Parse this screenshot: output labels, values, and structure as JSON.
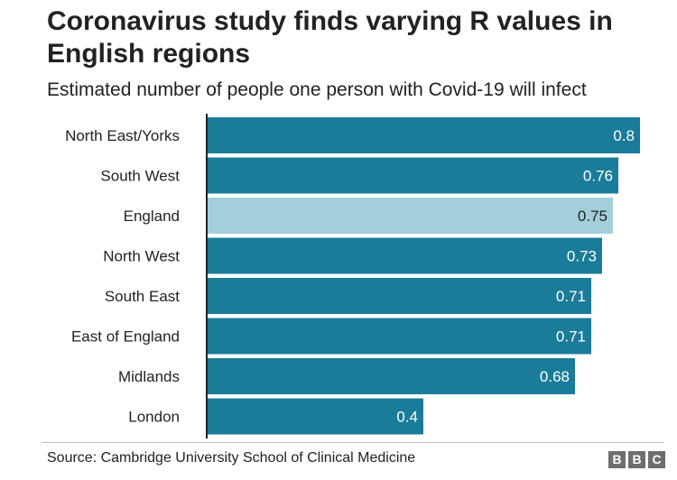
{
  "header": {
    "title": "Coronavirus study finds varying R values in English regions",
    "subtitle": "Estimated number of people one person with Covid-19 will infect"
  },
  "chart_data": {
    "type": "bar",
    "orientation": "horizontal",
    "categories": [
      "North East/Yorks",
      "South West",
      "England",
      "North West",
      "South East",
      "East of England",
      "Midlands",
      "London"
    ],
    "values": [
      0.8,
      0.76,
      0.75,
      0.73,
      0.71,
      0.71,
      0.68,
      0.4
    ],
    "value_labels": [
      "0.8",
      "0.76",
      "0.75",
      "0.73",
      "0.71",
      "0.71",
      "0.68",
      "0.4"
    ],
    "highlight_category": "England",
    "xlim": [
      0,
      0.8
    ],
    "grid": false,
    "title": "Coronavirus study finds varying R values in English regions",
    "subtitle": "Estimated number of people one person with Covid-19 will infect",
    "xlabel": "",
    "ylabel": ""
  },
  "colors": {
    "bar": "#1a7c99",
    "bar_highlight": "#a3cfdc",
    "label_on_bar": "#ffffff",
    "label_on_highlight": "#222222",
    "axis": "#222222"
  },
  "footer": {
    "source": "Source: Cambridge University School of Clinical Medicine",
    "logo_letters": [
      "B",
      "B",
      "C"
    ]
  }
}
